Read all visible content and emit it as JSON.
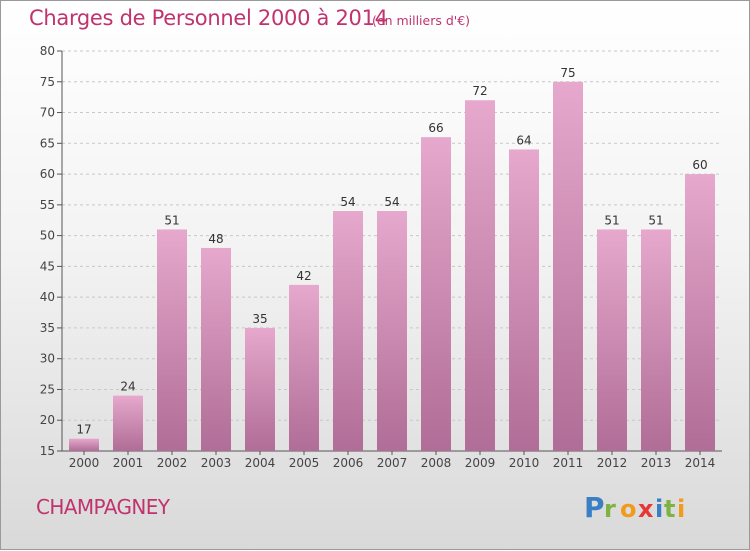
{
  "header": {
    "title": "Charges de Personnel 2000 à 2014",
    "unit": "(en milliers d'€)"
  },
  "footer": {
    "commune": "CHAMPAGNEY",
    "brand": "Proxiti"
  },
  "colors": {
    "title": "#c0336e",
    "bar_top": "#e6a8cc",
    "bar_bottom": "#b06d97",
    "grid": "#c8c8c8"
  },
  "chart_data": {
    "type": "bar",
    "categories": [
      "2000",
      "2001",
      "2002",
      "2003",
      "2004",
      "2005",
      "2006",
      "2007",
      "2008",
      "2009",
      "2010",
      "2011",
      "2012",
      "2013",
      "2014"
    ],
    "values": [
      17,
      24,
      51,
      48,
      35,
      42,
      54,
      54,
      66,
      72,
      64,
      75,
      51,
      51,
      60
    ],
    "title": "Charges de Personnel 2000 à 2014",
    "subtitle": "(en milliers d'€)",
    "xlabel": "",
    "ylabel": "",
    "ylim": [
      15,
      80
    ],
    "yticks": [
      15,
      20,
      25,
      30,
      35,
      40,
      45,
      50,
      55,
      60,
      65,
      70,
      75,
      80
    ],
    "grid": true,
    "data_labels": true
  }
}
